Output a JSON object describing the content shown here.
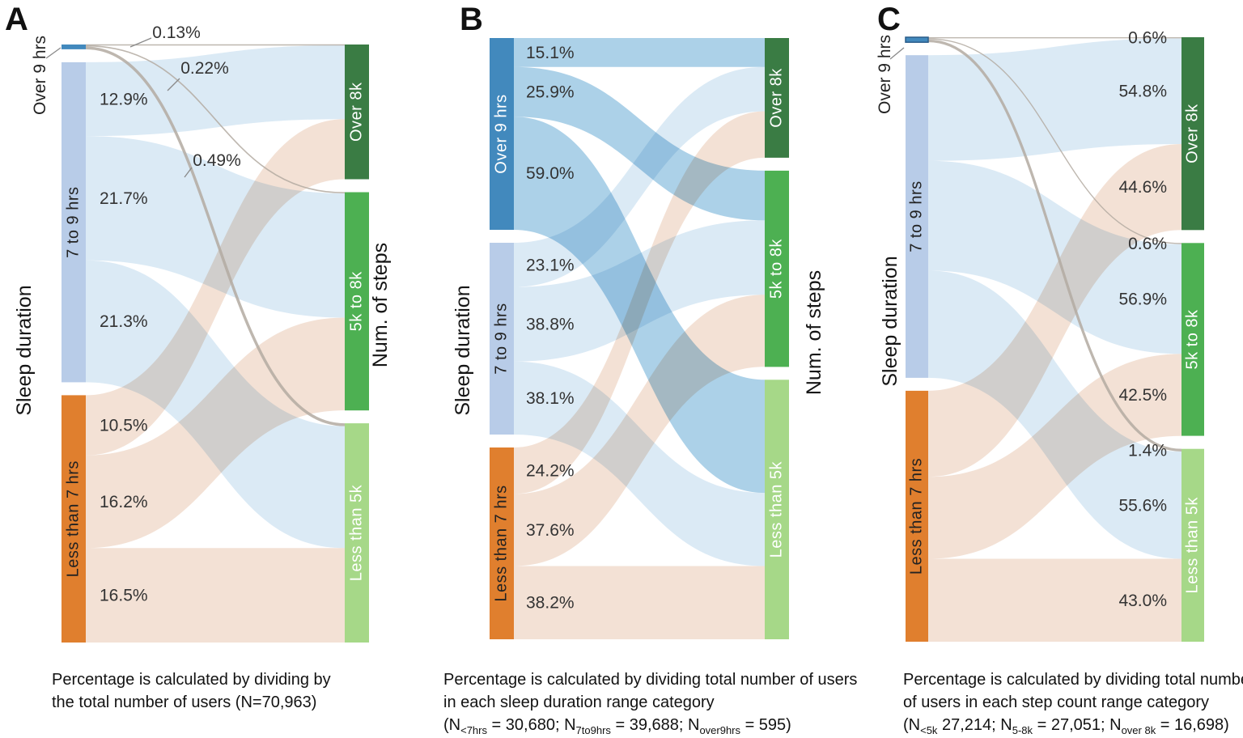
{
  "figure": {
    "background": "#ffffff",
    "colors": {
      "node_over9": "#4289bd",
      "node_over9_border": "#2a5d8a",
      "node_7to9": "#b8cce8",
      "node_less7": "#e07f2e",
      "node_over8k": "#3a7c44",
      "node_5to8k": "#4db052",
      "node_less5k": "#a6d888",
      "flow_from_7to9": "#d8e8f4",
      "flow_from_less7": "#f2dfd2",
      "flow_from_over9_panelB": "#a6cde6",
      "flow_thin_gray": "#b3aaa1",
      "pct_label_text": "#333333",
      "node_text_light": "#ffffff",
      "node_text_dark": "#222222"
    }
  },
  "chart_data": [
    {
      "type": "sankey",
      "panel_letter": "A",
      "left_axis_label": "Sleep duration",
      "right_axis_label": "Num. of steps",
      "left_categories": [
        "Over 9 hrs",
        "7 to 9 hrs",
        "Less than 7 hrs"
      ],
      "right_categories": [
        "Over 8k",
        "5k to 8k",
        "Less than 5k"
      ],
      "flows_pct": [
        [
          0.13,
          0.22,
          0.49
        ],
        [
          12.9,
          21.7,
          21.3
        ],
        [
          10.5,
          16.2,
          16.5
        ]
      ],
      "flow_labels": [
        [
          "0.13%",
          "0.22%",
          "0.49%"
        ],
        [
          "12.9%",
          "21.7%",
          "21.3%"
        ],
        [
          "10.5%",
          "16.2%",
          "16.5%"
        ]
      ],
      "normalization": "percent of total users",
      "caption_segments": [
        [
          {
            "t": "Percentage is calculated by dividing by"
          }
        ],
        [
          {
            "t": "the total number of users (N=70,963)"
          }
        ]
      ]
    },
    {
      "type": "sankey",
      "panel_letter": "B",
      "left_axis_label": "Sleep duration",
      "right_axis_label": "Num. of steps",
      "left_categories": [
        "Over 9 hrs",
        "7 to 9 hrs",
        "Less than 7 hrs"
      ],
      "right_categories": [
        "Over 8k",
        "5k to 8k",
        "Less than 5k"
      ],
      "flows_pct": [
        [
          15.1,
          25.9,
          59.0
        ],
        [
          23.1,
          38.8,
          38.1
        ],
        [
          24.2,
          37.6,
          38.2
        ]
      ],
      "flow_labels": [
        [
          "15.1%",
          "25.9%",
          "59.0%"
        ],
        [
          "23.1%",
          "38.8%",
          "38.1%"
        ],
        [
          "24.2%",
          "37.6%",
          "38.2%"
        ]
      ],
      "normalization": "percent within each sleep duration category",
      "caption_segments": [
        [
          {
            "t": "Percentage is calculated by dividing total number of users"
          }
        ],
        [
          {
            "t": " in each sleep duration range category"
          }
        ],
        [
          {
            "t": "(N"
          },
          {
            "s": "<7hrs"
          },
          {
            "t": " = 30,680; N"
          },
          {
            "s": "7to9hrs"
          },
          {
            "t": " = 39,688; N"
          },
          {
            "s": "over9hrs"
          },
          {
            "t": " = 595)"
          }
        ]
      ]
    },
    {
      "type": "sankey",
      "panel_letter": "C",
      "left_axis_label": "Sleep duration",
      "right_axis_label": null,
      "left_categories": [
        "Over 9 hrs",
        "7 to 9 hrs",
        "Less than 7 hrs"
      ],
      "right_categories": [
        "Over 8k",
        "5k to 8k",
        "Less than 5k"
      ],
      "flows_pct": [
        [
          0.6,
          0.6,
          1.4
        ],
        [
          54.8,
          56.9,
          55.6
        ],
        [
          44.6,
          42.5,
          43.0
        ]
      ],
      "flow_labels": [
        [
          "0.6%",
          "0.6%",
          "1.4%"
        ],
        [
          "54.8%",
          "56.9%",
          "55.6%"
        ],
        [
          "44.6%",
          "42.5%",
          "43.0%"
        ]
      ],
      "normalization": "percent within each step count category",
      "caption_segments": [
        [
          {
            "t": "Percentage is calculated by dividing total number"
          }
        ],
        [
          {
            "t": "of users in each step count range category"
          }
        ],
        [
          {
            "t": "(N"
          },
          {
            "s": "<5k"
          },
          {
            "t": " 27,214; N"
          },
          {
            "s": "5-8k"
          },
          {
            "t": " = 27,051; N"
          },
          {
            "s": "over 8k"
          },
          {
            "t": " = 16,698)"
          }
        ]
      ]
    }
  ]
}
